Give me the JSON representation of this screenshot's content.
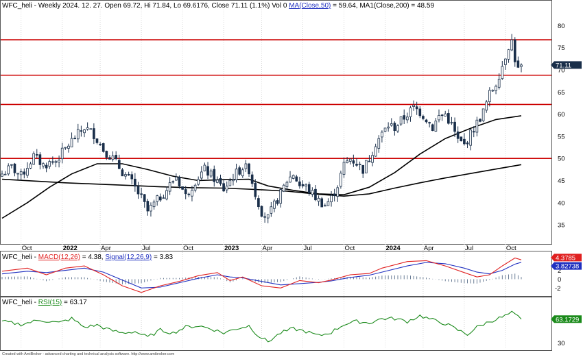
{
  "header": {
    "price_text": "WFC_heli - Weekly 2024. 12. 27. Open 69.72, Hi 71.84, Lo 69.6176, Close 71.11 (1.1%) Vol 0",
    "ma50_label": "MA(Close,50)",
    "ma50_value": " = 59.64, ",
    "ma200_text": "MA1(Close,200) = 48.59"
  },
  "macd_header": {
    "prefix": "WFC_heli - ",
    "macd_label": "MACD(12,26)",
    "macd_value": " = 4.38, ",
    "signal_label": "Signal(12,26,9)",
    "signal_value": " = 3.83"
  },
  "rsi_header": {
    "prefix": "WFC_heli - ",
    "rsi_label": "RSI(15)",
    "rsi_value": " = 63.17"
  },
  "footer": "Created with AmiBroker - advanced charting and technical analysis software. http://www.amibroker.com",
  "colors": {
    "candle": "#1a2f4a",
    "ma50": "#000000",
    "ma200": "#000000",
    "hline": "#cc0000",
    "macd": "#e02020",
    "signal": "#2030c0",
    "histogram": "#5a6f8a",
    "rsi": "#1a8a1a",
    "price_badge": "#1a2f4a",
    "macd_badge": "#e02020",
    "signal_badge": "#2030c0",
    "rsi_badge": "#1a8a1a"
  },
  "chart_data": [
    {
      "type": "candlestick",
      "title": "WFC_heli - Weekly",
      "x_labels": [
        "Oct",
        "2022",
        "Apr",
        "Jul",
        "Oct",
        "2023",
        "Apr",
        "Jul",
        "Oct",
        "2024",
        "Apr",
        "Jul",
        "Oct"
      ],
      "y_ticks": [
        35,
        40,
        45,
        50,
        55,
        60,
        65,
        70,
        75,
        80
      ],
      "ylim": [
        31,
        83
      ],
      "last_close": "71.11",
      "horizontal_lines": [
        76.8,
        68.8,
        62.2,
        50.0
      ],
      "close_path": [
        [
          0,
          46.5
        ],
        [
          3,
          48.0
        ],
        [
          6,
          46.0
        ],
        [
          10,
          50.5
        ],
        [
          13,
          48.5
        ],
        [
          17,
          49.5
        ],
        [
          22,
          54.0
        ],
        [
          26,
          57.0
        ],
        [
          29,
          55.5
        ],
        [
          32,
          52.0
        ],
        [
          35,
          50.0
        ],
        [
          38,
          47.0
        ],
        [
          41,
          44.5
        ],
        [
          44,
          41.0
        ],
        [
          46,
          38.0
        ],
        [
          49,
          40.5
        ],
        [
          52,
          43.0
        ],
        [
          55,
          46.0
        ],
        [
          58,
          41.5
        ],
        [
          61,
          45.0
        ],
        [
          64,
          47.5
        ],
        [
          67,
          45.5
        ],
        [
          70,
          43.0
        ],
        [
          73,
          46.0
        ],
        [
          76,
          48.0
        ],
        [
          78,
          47.5
        ],
        [
          80,
          42.0
        ],
        [
          82,
          38.0
        ],
        [
          84,
          36.5
        ],
        [
          86,
          39.5
        ],
        [
          88,
          42.0
        ],
        [
          90,
          45.0
        ],
        [
          92,
          46.5
        ],
        [
          94,
          44.0
        ],
        [
          96,
          43.5
        ],
        [
          98,
          42.0
        ],
        [
          100,
          40.5
        ],
        [
          102,
          39.5
        ],
        [
          104,
          41.0
        ],
        [
          106,
          44.0
        ],
        [
          108,
          48.5
        ],
        [
          110,
          50.0
        ],
        [
          112,
          49.0
        ],
        [
          114,
          47.5
        ],
        [
          116,
          50.0
        ],
        [
          118,
          53.5
        ],
        [
          120,
          55.5
        ],
        [
          122,
          57.5
        ],
        [
          124,
          57.0
        ],
        [
          126,
          58.5
        ],
        [
          128,
          60.0
        ],
        [
          130,
          61.5
        ],
        [
          132,
          60.5
        ],
        [
          134,
          59.0
        ],
        [
          136,
          57.0
        ],
        [
          138,
          59.5
        ],
        [
          140,
          60.0
        ],
        [
          142,
          57.5
        ],
        [
          144,
          54.0
        ],
        [
          146,
          53.0
        ],
        [
          148,
          55.5
        ],
        [
          150,
          58.0
        ],
        [
          152,
          60.5
        ],
        [
          154,
          64.5
        ],
        [
          156,
          67.0
        ],
        [
          158,
          71.0
        ],
        [
          160,
          75.5
        ],
        [
          161,
          76.5
        ],
        [
          162,
          72.5
        ],
        [
          163,
          70.0
        ],
        [
          164,
          71.11
        ]
      ],
      "ma50": [
        [
          0,
          36.5
        ],
        [
          8,
          40.0
        ],
        [
          15,
          43.5
        ],
        [
          22,
          46.5
        ],
        [
          30,
          48.8
        ],
        [
          38,
          48.8
        ],
        [
          46,
          47.5
        ],
        [
          54,
          46.0
        ],
        [
          62,
          45.0
        ],
        [
          70,
          45.2
        ],
        [
          78,
          45.3
        ],
        [
          84,
          43.8
        ],
        [
          92,
          42.8
        ],
        [
          100,
          42.0
        ],
        [
          108,
          41.8
        ],
        [
          116,
          43.5
        ],
        [
          124,
          46.8
        ],
        [
          132,
          51.0
        ],
        [
          140,
          54.5
        ],
        [
          148,
          56.8
        ],
        [
          156,
          58.8
        ],
        [
          164,
          59.64
        ]
      ],
      "ma200": [
        [
          0,
          45.3
        ],
        [
          10,
          44.9
        ],
        [
          20,
          44.5
        ],
        [
          30,
          44.2
        ],
        [
          40,
          43.9
        ],
        [
          50,
          43.6
        ],
        [
          60,
          43.4
        ],
        [
          70,
          43.3
        ],
        [
          80,
          43.0
        ],
        [
          90,
          42.6
        ],
        [
          100,
          41.9
        ],
        [
          108,
          41.5
        ],
        [
          116,
          42.0
        ],
        [
          124,
          43.3
        ],
        [
          132,
          44.5
        ],
        [
          140,
          45.6
        ],
        [
          148,
          46.6
        ],
        [
          156,
          47.6
        ],
        [
          164,
          48.59
        ]
      ]
    },
    {
      "type": "line",
      "title": "MACD(12,26)",
      "y_ticks": [
        -2,
        0,
        2
      ],
      "ylim": [
        -3.5,
        5.5
      ],
      "macd_last": "4.3785",
      "signal_last": "3.82738",
      "macd": [
        [
          0,
          1.8
        ],
        [
          8,
          2.5
        ],
        [
          14,
          1.0
        ],
        [
          20,
          2.5
        ],
        [
          26,
          3.0
        ],
        [
          32,
          1.0
        ],
        [
          38,
          -1.5
        ],
        [
          44,
          -3.0
        ],
        [
          50,
          -1.5
        ],
        [
          56,
          -0.5
        ],
        [
          62,
          0.8
        ],
        [
          68,
          1.5
        ],
        [
          72,
          -0.3
        ],
        [
          76,
          0.5
        ],
        [
          82,
          -1.5
        ],
        [
          88,
          -2.0
        ],
        [
          94,
          -0.3
        ],
        [
          100,
          -0.8
        ],
        [
          104,
          -0.2
        ],
        [
          110,
          1.0
        ],
        [
          116,
          1.3
        ],
        [
          120,
          2.5
        ],
        [
          128,
          4.0
        ],
        [
          134,
          4.2
        ],
        [
          140,
          3.0
        ],
        [
          146,
          1.5
        ],
        [
          150,
          0.5
        ],
        [
          154,
          1.0
        ],
        [
          158,
          3.0
        ],
        [
          162,
          4.8
        ],
        [
          164,
          4.38
        ]
      ],
      "signal": [
        [
          0,
          1.2
        ],
        [
          8,
          1.8
        ],
        [
          14,
          1.5
        ],
        [
          20,
          2.0
        ],
        [
          26,
          2.5
        ],
        [
          32,
          1.6
        ],
        [
          38,
          -0.2
        ],
        [
          44,
          -2.0
        ],
        [
          50,
          -1.8
        ],
        [
          56,
          -0.8
        ],
        [
          62,
          0.2
        ],
        [
          68,
          1.0
        ],
        [
          72,
          0.5
        ],
        [
          76,
          0.3
        ],
        [
          82,
          -0.5
        ],
        [
          88,
          -1.3
        ],
        [
          94,
          -1.0
        ],
        [
          100,
          -0.7
        ],
        [
          104,
          -0.4
        ],
        [
          110,
          0.4
        ],
        [
          116,
          0.9
        ],
        [
          120,
          1.6
        ],
        [
          128,
          3.0
        ],
        [
          134,
          3.8
        ],
        [
          140,
          3.5
        ],
        [
          146,
          2.5
        ],
        [
          150,
          1.6
        ],
        [
          154,
          1.2
        ],
        [
          158,
          2.0
        ],
        [
          162,
          3.4
        ],
        [
          164,
          3.83
        ]
      ]
    },
    {
      "type": "line",
      "title": "RSI(15)",
      "y_ticks": [
        30
      ],
      "ylim": [
        23,
        82
      ],
      "rsi_last": "63.1729",
      "rsi": [
        [
          0,
          60
        ],
        [
          6,
          56
        ],
        [
          12,
          62
        ],
        [
          18,
          58
        ],
        [
          22,
          64
        ],
        [
          26,
          52
        ],
        [
          30,
          55
        ],
        [
          34,
          48
        ],
        [
          38,
          44
        ],
        [
          42,
          46
        ],
        [
          46,
          38
        ],
        [
          50,
          48
        ],
        [
          54,
          44
        ],
        [
          58,
          52
        ],
        [
          62,
          54
        ],
        [
          66,
          50
        ],
        [
          70,
          44
        ],
        [
          74,
          50
        ],
        [
          78,
          54
        ],
        [
          81,
          40
        ],
        [
          84,
          32
        ],
        [
          88,
          44
        ],
        [
          92,
          50
        ],
        [
          96,
          46
        ],
        [
          100,
          40
        ],
        [
          104,
          45
        ],
        [
          108,
          56
        ],
        [
          112,
          60
        ],
        [
          116,
          58
        ],
        [
          120,
          64
        ],
        [
          124,
          64
        ],
        [
          128,
          60
        ],
        [
          132,
          68
        ],
        [
          136,
          62
        ],
        [
          140,
          57
        ],
        [
          144,
          48
        ],
        [
          147,
          42
        ],
        [
          150,
          52
        ],
        [
          154,
          60
        ],
        [
          158,
          66
        ],
        [
          161,
          72
        ],
        [
          164,
          63.17
        ]
      ]
    }
  ]
}
